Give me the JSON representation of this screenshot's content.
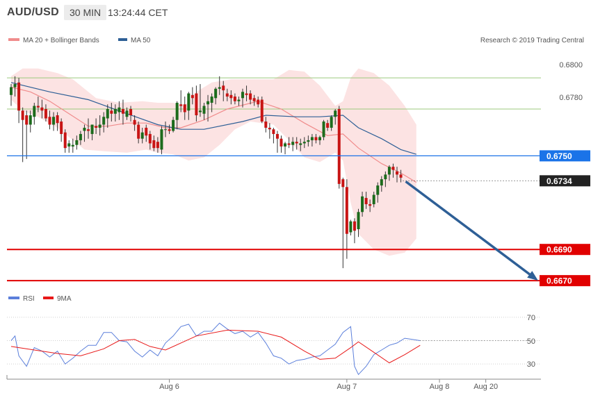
{
  "header": {
    "pair": "AUD/USD",
    "timeframe": "30 MIN",
    "time": "13:24:44 CET"
  },
  "legend": {
    "ma20": "MA 20 + Bollinger Bands",
    "ma20_color": "#f08c8c",
    "ma50": "MA 50",
    "ma50_color": "#2e5f96",
    "rsi": "RSI",
    "rsi_color": "#5b7fdb",
    "ma9": "9MA",
    "ma9_color": "#e81818"
  },
  "credit": "Research © 2019 Trading Central",
  "levels": [
    {
      "value": 0.675,
      "label": "0.6750",
      "kind": "pivot",
      "color": "#1a73e8"
    },
    {
      "value": 0.6734,
      "label": "0.6734",
      "kind": "last",
      "color": "#222222"
    },
    {
      "value": 0.669,
      "label": "0.6690",
      "kind": "support",
      "color": "#e10000"
    },
    {
      "value": 0.667,
      "label": "0.6670",
      "kind": "support",
      "color": "#e10000"
    }
  ],
  "y_tick_labels": [
    "0.6800",
    "0.6780"
  ],
  "rsi_tick_labels": [
    "70",
    "50",
    "30"
  ],
  "x_tick_labels": [
    "Aug 6",
    "Aug 7",
    "Aug 8",
    "Aug 20"
  ],
  "chart_data": {
    "type": "candlestick",
    "ylim": [
      0.66665,
      0.68165
    ],
    "rsi_ylim": [
      20,
      80
    ],
    "x_ticks": [
      {
        "label": "Aug 6",
        "index": 41
      },
      {
        "label": "Aug 7",
        "index": 87
      },
      {
        "label": "Aug 8",
        "index": 111
      },
      {
        "label": "Aug 20",
        "index": 123
      }
    ],
    "candles": [
      [
        0.6789,
        0.6796,
        0.6782,
        0.6794
      ],
      [
        0.6794,
        0.6801,
        0.6788,
        0.6796
      ],
      [
        0.6797,
        0.68,
        0.6771,
        0.6779
      ],
      [
        0.6779,
        0.6781,
        0.6746,
        0.6773
      ],
      [
        0.6776,
        0.6779,
        0.6748,
        0.677
      ],
      [
        0.677,
        0.6779,
        0.6765,
        0.6776
      ],
      [
        0.6775,
        0.6784,
        0.677,
        0.6782
      ],
      [
        0.6782,
        0.6788,
        0.6778,
        0.6781
      ],
      [
        0.6781,
        0.6786,
        0.6774,
        0.6779
      ],
      [
        0.678,
        0.6783,
        0.6772,
        0.6774
      ],
      [
        0.6775,
        0.6779,
        0.6767,
        0.677
      ],
      [
        0.677,
        0.6778,
        0.6766,
        0.6775
      ],
      [
        0.6776,
        0.6778,
        0.6766,
        0.6771
      ],
      [
        0.6772,
        0.6774,
        0.6759,
        0.6764
      ],
      [
        0.6765,
        0.6767,
        0.6752,
        0.6755
      ],
      [
        0.6756,
        0.676,
        0.6752,
        0.6758
      ],
      [
        0.6756,
        0.6761,
        0.6752,
        0.6757
      ],
      [
        0.6757,
        0.6763,
        0.6754,
        0.676
      ],
      [
        0.676,
        0.6766,
        0.6757,
        0.6764
      ],
      [
        0.6766,
        0.677,
        0.6759,
        0.6768
      ],
      [
        0.6767,
        0.6774,
        0.6761,
        0.6766
      ],
      [
        0.6764,
        0.677,
        0.676,
        0.677
      ],
      [
        0.6769,
        0.6774,
        0.6764,
        0.6768
      ],
      [
        0.6768,
        0.6776,
        0.6763,
        0.677
      ],
      [
        0.677,
        0.6778,
        0.6765,
        0.6775
      ],
      [
        0.6774,
        0.6783,
        0.6768,
        0.678
      ],
      [
        0.6779,
        0.6784,
        0.6772,
        0.6777
      ],
      [
        0.6777,
        0.6783,
        0.6772,
        0.678
      ],
      [
        0.6778,
        0.6785,
        0.6773,
        0.6781
      ],
      [
        0.678,
        0.6786,
        0.677,
        0.6777
      ],
      [
        0.6775,
        0.6781,
        0.6773,
        0.6779
      ],
      [
        0.678,
        0.6782,
        0.6772,
        0.6776
      ],
      [
        0.6773,
        0.6776,
        0.6766,
        0.677
      ],
      [
        0.677,
        0.6772,
        0.6758,
        0.6761
      ],
      [
        0.6761,
        0.6768,
        0.6758,
        0.6765
      ],
      [
        0.6768,
        0.677,
        0.6759,
        0.6763
      ],
      [
        0.6764,
        0.6766,
        0.6754,
        0.6758
      ],
      [
        0.676,
        0.6763,
        0.6753,
        0.6755
      ],
      [
        0.6759,
        0.6762,
        0.6752,
        0.6755
      ],
      [
        0.6754,
        0.6769,
        0.6751,
        0.6767
      ],
      [
        0.6767,
        0.6772,
        0.6762,
        0.6767
      ],
      [
        0.6767,
        0.677,
        0.6764,
        0.6766
      ],
      [
        0.6766,
        0.6775,
        0.6765,
        0.6773
      ],
      [
        0.6773,
        0.6785,
        0.6767,
        0.6784
      ],
      [
        0.6783,
        0.6792,
        0.6778,
        0.6782
      ],
      [
        0.6783,
        0.6788,
        0.6773,
        0.6778
      ],
      [
        0.6779,
        0.6791,
        0.6773,
        0.679
      ],
      [
        0.6789,
        0.6794,
        0.6783,
        0.6787
      ],
      [
        0.679,
        0.6795,
        0.6772,
        0.6776
      ],
      [
        0.6778,
        0.6796,
        0.6775,
        0.6779
      ],
      [
        0.6777,
        0.6784,
        0.6773,
        0.6782
      ],
      [
        0.6783,
        0.6789,
        0.6772,
        0.6785
      ],
      [
        0.6784,
        0.679,
        0.6778,
        0.6788
      ],
      [
        0.6787,
        0.6794,
        0.6783,
        0.6793
      ],
      [
        0.6793,
        0.6801,
        0.6789,
        0.6794
      ],
      [
        0.6795,
        0.6798,
        0.6785,
        0.6792
      ],
      [
        0.679,
        0.6793,
        0.6785,
        0.6788
      ],
      [
        0.6789,
        0.6792,
        0.6783,
        0.6787
      ],
      [
        0.6788,
        0.679,
        0.6783,
        0.6785
      ],
      [
        0.6785,
        0.6788,
        0.6782,
        0.6786
      ],
      [
        0.6787,
        0.6793,
        0.6781,
        0.6791
      ],
      [
        0.679,
        0.6795,
        0.6785,
        0.6789
      ],
      [
        0.679,
        0.6792,
        0.6783,
        0.6786
      ],
      [
        0.6787,
        0.6789,
        0.6782,
        0.6785
      ],
      [
        0.6786,
        0.6788,
        0.6781,
        0.6783
      ],
      [
        0.6786,
        0.6788,
        0.6771,
        0.6772
      ],
      [
        0.6772,
        0.6775,
        0.6765,
        0.6768
      ],
      [
        0.6768,
        0.6771,
        0.6761,
        0.6767
      ],
      [
        0.6767,
        0.6768,
        0.6758,
        0.6764
      ],
      [
        0.6764,
        0.6766,
        0.6752,
        0.6761
      ],
      [
        0.6761,
        0.6763,
        0.6752,
        0.6756
      ],
      [
        0.6756,
        0.6759,
        0.6751,
        0.6758
      ],
      [
        0.6758,
        0.6762,
        0.6755,
        0.6757
      ],
      [
        0.6757,
        0.6762,
        0.6753,
        0.6759
      ],
      [
        0.6759,
        0.6762,
        0.6754,
        0.6758
      ],
      [
        0.6757,
        0.6761,
        0.6753,
        0.6758
      ],
      [
        0.6758,
        0.6762,
        0.6755,
        0.6759
      ],
      [
        0.6759,
        0.6763,
        0.6756,
        0.676
      ],
      [
        0.676,
        0.6764,
        0.6756,
        0.6762
      ],
      [
        0.6762,
        0.6764,
        0.6758,
        0.676
      ],
      [
        0.676,
        0.6763,
        0.6757,
        0.6762
      ],
      [
        0.6762,
        0.6773,
        0.676,
        0.6772
      ],
      [
        0.6771,
        0.6773,
        0.6766,
        0.6768
      ],
      [
        0.6768,
        0.6776,
        0.6766,
        0.6775
      ],
      [
        0.6775,
        0.678,
        0.677,
        0.6779
      ],
      [
        0.678,
        0.6782,
        0.6729,
        0.6732
      ],
      [
        0.6735,
        0.6736,
        0.6678,
        0.673
      ],
      [
        0.673,
        0.6735,
        0.6684,
        0.67
      ],
      [
        0.6701,
        0.6709,
        0.6699,
        0.6708
      ],
      [
        0.6708,
        0.671,
        0.6694,
        0.6702
      ],
      [
        0.6703,
        0.6716,
        0.6698,
        0.6714
      ],
      [
        0.6714,
        0.6727,
        0.6711,
        0.6724
      ],
      [
        0.6723,
        0.6727,
        0.6716,
        0.6719
      ],
      [
        0.6719,
        0.6722,
        0.6714,
        0.6718
      ],
      [
        0.6719,
        0.6727,
        0.6717,
        0.6725
      ],
      [
        0.6725,
        0.6733,
        0.672,
        0.6731
      ],
      [
        0.6731,
        0.6737,
        0.6727,
        0.6735
      ],
      [
        0.6735,
        0.674,
        0.673,
        0.6738
      ],
      [
        0.6738,
        0.6744,
        0.6734,
        0.6743
      ],
      [
        0.6743,
        0.6745,
        0.6736,
        0.6741
      ],
      [
        0.674,
        0.6743,
        0.6733,
        0.6738
      ],
      [
        0.6738,
        0.6741,
        0.6733,
        0.6736
      ]
    ],
    "ma50": [
      [
        0,
        0.6797
      ],
      [
        10,
        0.6791
      ],
      [
        20,
        0.6786
      ],
      [
        30,
        0.6777
      ],
      [
        38,
        0.677
      ],
      [
        44,
        0.6767
      ],
      [
        50,
        0.6767
      ],
      [
        60,
        0.6772
      ],
      [
        66,
        0.6776
      ],
      [
        74,
        0.6775
      ],
      [
        80,
        0.6775
      ],
      [
        86,
        0.6776
      ],
      [
        90,
        0.6768
      ],
      [
        96,
        0.6761
      ],
      [
        101,
        0.6754
      ],
      [
        105,
        0.6751
      ]
    ],
    "ma20": [
      [
        0,
        0.6794
      ],
      [
        5,
        0.6791
      ],
      [
        10,
        0.6785
      ],
      [
        15,
        0.6777
      ],
      [
        20,
        0.6769
      ],
      [
        25,
        0.6769
      ],
      [
        30,
        0.6771
      ],
      [
        35,
        0.6771
      ],
      [
        40,
        0.6768
      ],
      [
        44,
        0.6768
      ],
      [
        50,
        0.6773
      ],
      [
        56,
        0.678
      ],
      [
        64,
        0.6785
      ],
      [
        70,
        0.678
      ],
      [
        76,
        0.6771
      ],
      [
        82,
        0.6763
      ],
      [
        86,
        0.6764
      ],
      [
        90,
        0.6755
      ],
      [
        96,
        0.6745
      ],
      [
        101,
        0.6739
      ],
      [
        105,
        0.6733
      ]
    ],
    "bb_upper": [
      [
        0,
        0.6801
      ],
      [
        3,
        0.6806
      ],
      [
        7,
        0.6806
      ],
      [
        12,
        0.6803
      ],
      [
        16,
        0.6799
      ],
      [
        19,
        0.6793
      ],
      [
        22,
        0.6787
      ],
      [
        28,
        0.6784
      ],
      [
        34,
        0.6785
      ],
      [
        38,
        0.6784
      ],
      [
        42,
        0.6784
      ],
      [
        45,
        0.6782
      ],
      [
        48,
        0.6791
      ],
      [
        52,
        0.6797
      ],
      [
        57,
        0.6799
      ],
      [
        62,
        0.6799
      ],
      [
        68,
        0.6799
      ],
      [
        72,
        0.6805
      ],
      [
        76,
        0.6804
      ],
      [
        80,
        0.6795
      ],
      [
        84,
        0.6782
      ],
      [
        86,
        0.6785
      ],
      [
        88,
        0.68
      ],
      [
        90,
        0.6806
      ],
      [
        94,
        0.6803
      ],
      [
        98,
        0.6795
      ],
      [
        102,
        0.6782
      ],
      [
        105,
        0.677
      ]
    ],
    "bb_lower": [
      [
        0,
        0.6786
      ],
      [
        3,
        0.6779
      ],
      [
        7,
        0.6775
      ],
      [
        12,
        0.6768
      ],
      [
        16,
        0.676
      ],
      [
        19,
        0.6754
      ],
      [
        24,
        0.6753
      ],
      [
        30,
        0.6752
      ],
      [
        35,
        0.6754
      ],
      [
        38,
        0.6752
      ],
      [
        42,
        0.6751
      ],
      [
        46,
        0.6747
      ],
      [
        50,
        0.6749
      ],
      [
        54,
        0.6757
      ],
      [
        58,
        0.6767
      ],
      [
        62,
        0.6772
      ],
      [
        68,
        0.677
      ],
      [
        72,
        0.676
      ],
      [
        76,
        0.6749
      ],
      [
        80,
        0.6746
      ],
      [
        84,
        0.6752
      ],
      [
        86,
        0.6747
      ],
      [
        88,
        0.672
      ],
      [
        90,
        0.67
      ],
      [
        94,
        0.669
      ],
      [
        98,
        0.6686
      ],
      [
        102,
        0.6688
      ],
      [
        105,
        0.6697
      ]
    ],
    "rsi": [
      [
        0,
        50
      ],
      [
        1,
        54
      ],
      [
        2,
        37
      ],
      [
        4,
        28
      ],
      [
        6,
        44
      ],
      [
        8,
        41
      ],
      [
        10,
        36
      ],
      [
        12,
        41
      ],
      [
        14,
        30
      ],
      [
        16,
        35
      ],
      [
        18,
        41
      ],
      [
        20,
        46
      ],
      [
        22,
        46
      ],
      [
        24,
        57
      ],
      [
        26,
        57
      ],
      [
        28,
        50
      ],
      [
        30,
        49
      ],
      [
        32,
        41
      ],
      [
        34,
        36
      ],
      [
        36,
        42
      ],
      [
        38,
        37
      ],
      [
        40,
        48
      ],
      [
        42,
        54
      ],
      [
        44,
        62
      ],
      [
        46,
        64
      ],
      [
        48,
        54
      ],
      [
        50,
        58
      ],
      [
        52,
        58
      ],
      [
        54,
        65
      ],
      [
        56,
        60
      ],
      [
        58,
        56
      ],
      [
        60,
        58
      ],
      [
        62,
        53
      ],
      [
        64,
        57
      ],
      [
        66,
        48
      ],
      [
        68,
        37
      ],
      [
        70,
        35
      ],
      [
        72,
        30
      ],
      [
        74,
        33
      ],
      [
        76,
        34
      ],
      [
        78,
        36
      ],
      [
        80,
        37
      ],
      [
        82,
        42
      ],
      [
        84,
        47
      ],
      [
        86,
        57
      ],
      [
        88,
        62
      ],
      [
        89,
        28
      ],
      [
        90,
        21
      ],
      [
        92,
        28
      ],
      [
        94,
        38
      ],
      [
        96,
        42
      ],
      [
        98,
        46
      ],
      [
        100,
        48
      ],
      [
        102,
        52
      ],
      [
        104,
        51
      ],
      [
        106,
        50
      ],
      [
        124,
        50
      ]
    ],
    "rsi_ma9": [
      [
        0,
        45
      ],
      [
        6,
        42
      ],
      [
        12,
        39
      ],
      [
        18,
        37
      ],
      [
        24,
        43
      ],
      [
        28,
        50
      ],
      [
        32,
        51
      ],
      [
        36,
        45
      ],
      [
        40,
        42
      ],
      [
        44,
        48
      ],
      [
        48,
        54
      ],
      [
        56,
        59
      ],
      [
        64,
        58
      ],
      [
        70,
        53
      ],
      [
        76,
        41
      ],
      [
        80,
        34
      ],
      [
        84,
        35
      ],
      [
        88,
        44
      ],
      [
        90,
        49
      ],
      [
        94,
        40
      ],
      [
        98,
        31
      ],
      [
        102,
        38
      ],
      [
        106,
        46
      ]
    ]
  }
}
